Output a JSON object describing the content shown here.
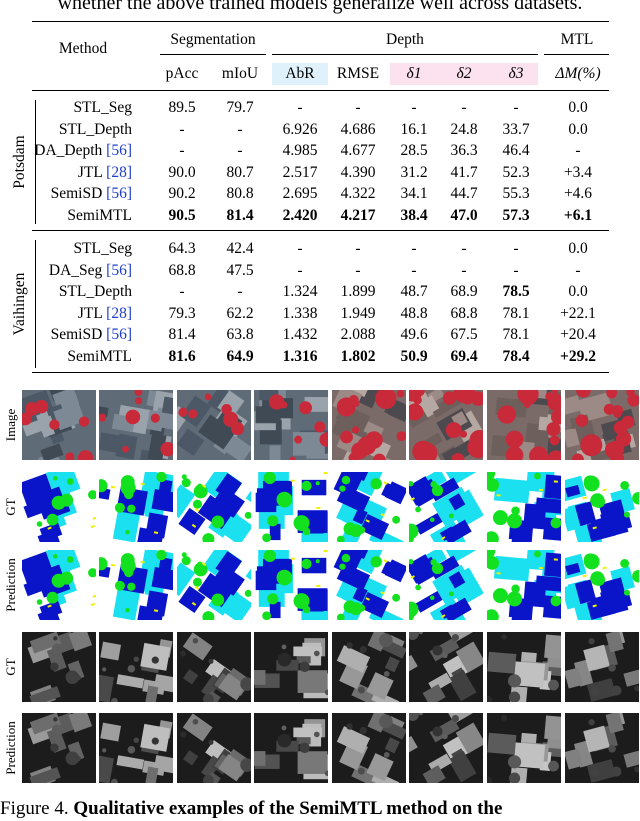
{
  "top_text": "whether the above trained models generalize well across datasets.",
  "table": {
    "method_header": "Method",
    "group_headers": {
      "segmentation": "Segmentation",
      "depth": "Depth",
      "mtl": "MTL"
    },
    "col_headers": [
      "pAcc",
      "mIoU",
      "AbR",
      "RMSE",
      "δ1",
      "δ2",
      "δ3",
      "ΔM(%)"
    ],
    "sections": [
      {
        "label": "Potsdam",
        "rows": [
          {
            "method": "STL_Seg",
            "ref": "",
            "values": [
              "89.5",
              "79.7",
              "-",
              "-",
              "-",
              "-",
              "-",
              "0.0"
            ],
            "bold": []
          },
          {
            "method": "STL_Depth",
            "ref": "",
            "values": [
              "-",
              "-",
              "6.926",
              "4.686",
              "16.1",
              "24.8",
              "33.7",
              "0.0"
            ],
            "bold": []
          },
          {
            "method": "DA_Depth ",
            "ref": "[56]",
            "values": [
              "-",
              "-",
              "4.985",
              "4.677",
              "28.5",
              "36.3",
              "46.4",
              "-"
            ],
            "bold": []
          },
          {
            "method": "JTL ",
            "ref": "[28]",
            "values": [
              "90.0",
              "80.7",
              "2.517",
              "4.390",
              "31.2",
              "41.7",
              "52.3",
              "+3.4"
            ],
            "bold": []
          },
          {
            "method": "SemiSD ",
            "ref": "[56]",
            "values": [
              "90.2",
              "80.8",
              "2.695",
              "4.322",
              "34.1",
              "44.7",
              "55.3",
              "+4.6"
            ],
            "bold": []
          },
          {
            "method": "SemiMTL",
            "ref": "",
            "values": [
              "90.5",
              "81.4",
              "2.420",
              "4.217",
              "38.4",
              "47.0",
              "57.3",
              "+6.1"
            ],
            "bold": [
              0,
              1,
              2,
              3,
              4,
              5,
              6,
              7
            ]
          }
        ]
      },
      {
        "label": "Vaihingen",
        "rows": [
          {
            "method": "STL_Seg",
            "ref": "",
            "values": [
              "64.3",
              "42.4",
              "-",
              "-",
              "-",
              "-",
              "-",
              "0.0"
            ],
            "bold": []
          },
          {
            "method": "DA_Seg ",
            "ref": "[56]",
            "values": [
              "68.8",
              "47.5",
              "-",
              "-",
              "-",
              "-",
              "-",
              "-"
            ],
            "bold": []
          },
          {
            "method": "STL_Depth",
            "ref": "",
            "values": [
              "-",
              "-",
              "1.324",
              "1.899",
              "48.7",
              "68.9",
              "78.5",
              "0.0"
            ],
            "bold": [
              6
            ]
          },
          {
            "method": "JTL ",
            "ref": "[28]",
            "values": [
              "79.3",
              "62.2",
              "1.338",
              "1.949",
              "48.8",
              "68.8",
              "78.1",
              "+22.1"
            ],
            "bold": []
          },
          {
            "method": "SemiSD ",
            "ref": "[56]",
            "values": [
              "81.4",
              "63.8",
              "1.432",
              "2.088",
              "49.6",
              "67.5",
              "78.1",
              "+20.4"
            ],
            "bold": []
          },
          {
            "method": "SemiMTL",
            "ref": "",
            "values": [
              "81.6",
              "64.9",
              "1.316",
              "1.802",
              "50.9",
              "69.4",
              "78.4",
              "+29.2"
            ],
            "bold": [
              0,
              1,
              2,
              3,
              4,
              5,
              6,
              7
            ]
          }
        ]
      }
    ]
  },
  "figure": {
    "row_labels": [
      "Image",
      "GT",
      "Prediction",
      "GT",
      "Prediction"
    ],
    "colors": {
      "building": "#0a14c8",
      "low_veg": "#1ae0f0",
      "tree": "#13e01e",
      "surface": "#ffffff",
      "car": "#f0f000",
      "ir_red": "#c82a3a"
    }
  },
  "caption": {
    "prefix": "Figure 4. ",
    "bold": "Qualitative examples of the SemiMTL method on the"
  }
}
